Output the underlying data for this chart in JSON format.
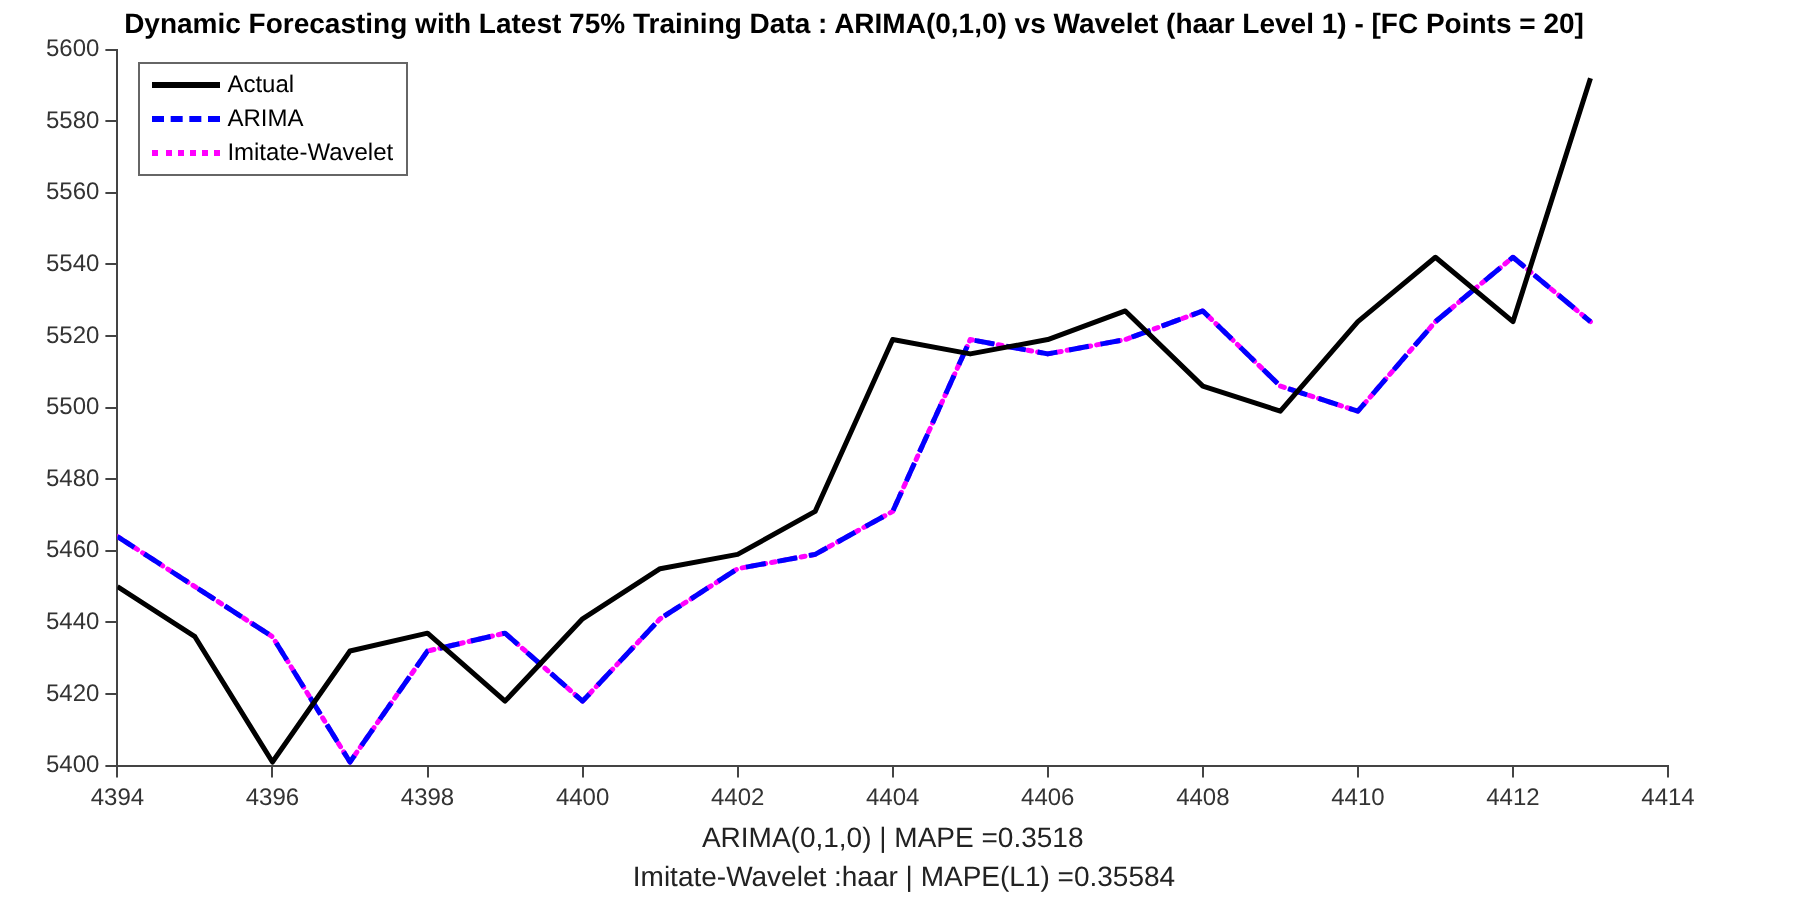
{
  "chart_data": {
    "type": "line",
    "title": "Dynamic Forecasting with Latest 75% Training Data : ARIMA(0,1,0) vs Wavelet (haar Level 1) - [FC Points = 20]",
    "xlabel": "ARIMA(0,1,0) | MAPE =0.3518",
    "annotations": [
      "Imitate-Wavelet :haar | MAPE(L1) =0.35584"
    ],
    "x": [
      4394,
      4395,
      4396,
      4397,
      4398,
      4399,
      4400,
      4401,
      4402,
      4403,
      4404,
      4405,
      4406,
      4407,
      4408,
      4409,
      4410,
      4411,
      4412,
      4413
    ],
    "series": [
      {
        "name": "Actual",
        "color": "#000000",
        "line_style": "solid",
        "values": [
          5450,
          5436,
          5401,
          5432,
          5437,
          5418,
          5441,
          5455,
          5459,
          5471,
          5519,
          5515,
          5519,
          5527,
          5506,
          5499,
          5524,
          5542,
          5524,
          5592
        ]
      },
      {
        "name": "ARIMA",
        "color": "#0000ff",
        "line_style": "dashed",
        "values": [
          5464,
          5450,
          5436,
          5401,
          5432,
          5437,
          5418,
          5441,
          5455,
          5459,
          5471,
          5519,
          5515,
          5519,
          5527,
          5506,
          5499,
          5524,
          5542,
          5524
        ]
      },
      {
        "name": "Imitate-Wavelet",
        "color": "#ff00ff",
        "line_style": "dotted",
        "values": [
          5464,
          5450,
          5436,
          5401,
          5432,
          5437,
          5418,
          5441,
          5455,
          5459,
          5471,
          5519,
          5515,
          5519,
          5527,
          5506,
          5499,
          5524,
          5542,
          5524
        ]
      }
    ],
    "xlim": [
      4394,
      4414
    ],
    "xticks": [
      4394,
      4396,
      4398,
      4400,
      4402,
      4404,
      4406,
      4408,
      4410,
      4412,
      4414
    ],
    "ylim": [
      5400,
      5600
    ],
    "yticks": [
      5400,
      5420,
      5440,
      5460,
      5480,
      5500,
      5520,
      5540,
      5560,
      5580,
      5600
    ],
    "grid": false,
    "legend": "top left",
    "marker": "none"
  }
}
